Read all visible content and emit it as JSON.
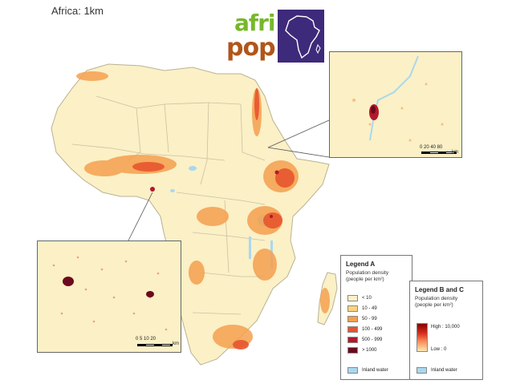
{
  "title": "Africa: 1km",
  "logo": {
    "top_text": "afri",
    "bottom_text": "pop",
    "colors": {
      "top": "#76b82a",
      "bottom": "#b0561a",
      "box": "#3e2a7a"
    }
  },
  "inset_b": {
    "scale_ticks": "0 20 40      80",
    "scale_unit": "km"
  },
  "inset_c": {
    "scale_ticks": "0   5  10       20",
    "scale_unit": "km"
  },
  "legend_a": {
    "title": "Legend A",
    "subtitle_line1": "Population density",
    "subtitle_line2": "(people per km²)",
    "classes": [
      {
        "label": "< 10",
        "color": "#fbf0c6"
      },
      {
        "label": "10 - 49",
        "color": "#f8d47f"
      },
      {
        "label": "50 - 99",
        "color": "#f5a04f"
      },
      {
        "label": "100 - 499",
        "color": "#e7552e"
      },
      {
        "label": "500 - 999",
        "color": "#b2182b"
      },
      {
        "label": "> 1000",
        "color": "#6b0a1c"
      }
    ],
    "inland_water_label": "Inland water",
    "inland_water_color": "#a9d8ef"
  },
  "legend_bc": {
    "title": "Legend B and C",
    "subtitle_line1": "Population density",
    "subtitle_line2": "(people per km²)",
    "high_label": "High : 10,000",
    "low_label": "Low : 0",
    "inland_water_label": "Inland water",
    "inland_water_color": "#a9d8ef"
  },
  "map_colors": {
    "land": "#fbf0c6",
    "border": "#c9c2a3",
    "water": "#a9d8ef",
    "medium": "#f5a04f",
    "high": "#e7552e",
    "very_high": "#b2182b"
  }
}
